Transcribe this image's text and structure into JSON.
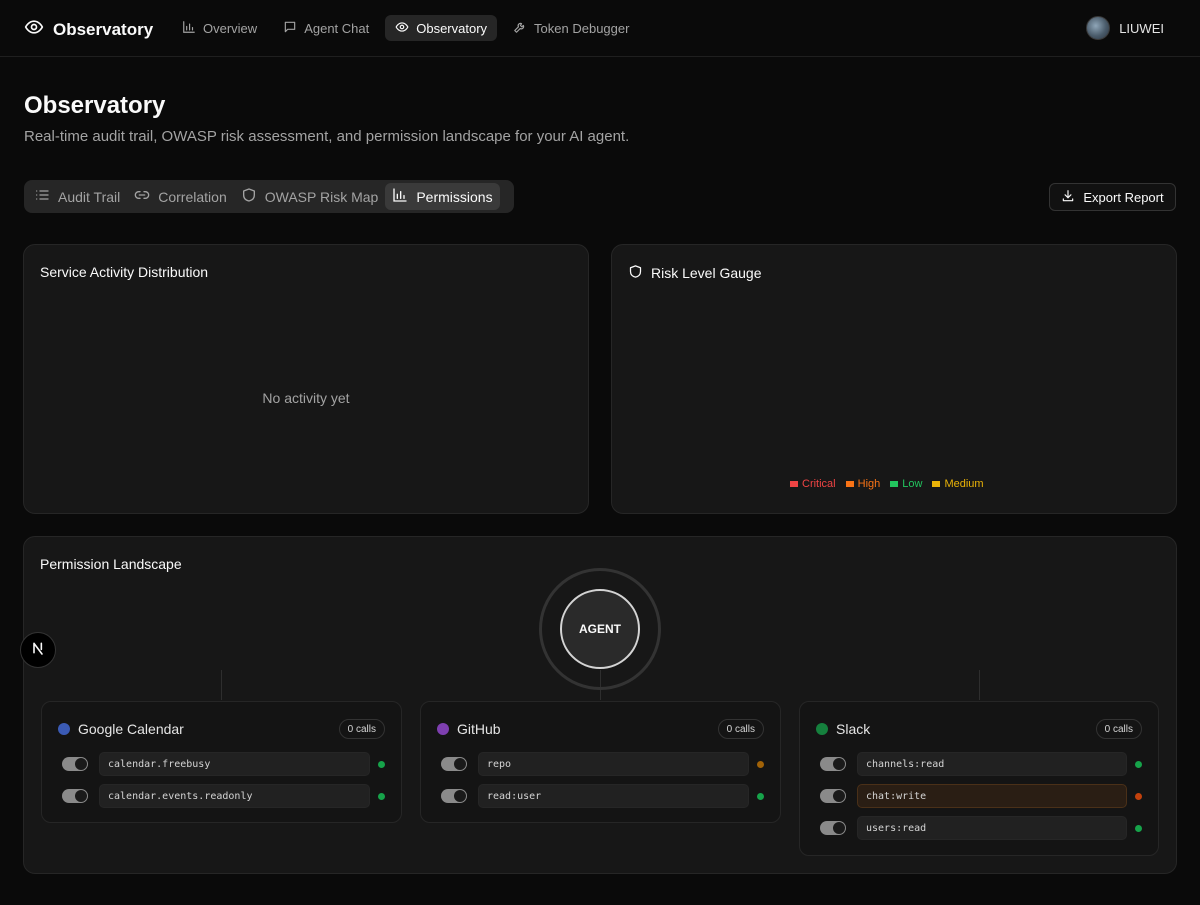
{
  "brand": {
    "title": "Observatory",
    "icon": "eye-icon"
  },
  "nav": {
    "items": [
      {
        "label": "Overview",
        "icon": "bar-chart-icon"
      },
      {
        "label": "Agent Chat",
        "icon": "chat-icon"
      },
      {
        "label": "Observatory",
        "icon": "eye-icon",
        "active": true
      },
      {
        "label": "Token Debugger",
        "icon": "wrench-icon"
      }
    ]
  },
  "user": {
    "name": "LIUWEI"
  },
  "header": {
    "title": "Observatory",
    "subtitle": "Real-time audit trail, OWASP risk assessment, and permission landscape for your AI agent."
  },
  "tabs": [
    {
      "label": "Audit Trail",
      "icon": "list-icon"
    },
    {
      "label": "Correlation",
      "icon": "link-icon"
    },
    {
      "label": "OWASP Risk Map",
      "icon": "shield-icon"
    },
    {
      "label": "Permissions",
      "icon": "bar-chart-icon",
      "active": true
    }
  ],
  "export": {
    "label": "Export Report"
  },
  "activity": {
    "title": "Service Activity Distribution",
    "empty": "No activity yet"
  },
  "gauge": {
    "title": "Risk Level Gauge",
    "legend": [
      {
        "label": "Critical",
        "color": "#ef4444"
      },
      {
        "label": "High",
        "color": "#f97316"
      },
      {
        "label": "Low",
        "color": "#22c55e"
      },
      {
        "label": "Medium",
        "color": "#eab308"
      }
    ]
  },
  "landscape": {
    "title": "Permission Landscape",
    "agent_label": "AGENT",
    "services": [
      {
        "name": "Google Calendar",
        "color": "#3b5bb5",
        "calls": "0 calls",
        "scopes": [
          {
            "name": "calendar.freebusy",
            "status_color": "#16a34a"
          },
          {
            "name": "calendar.events.readonly",
            "status_color": "#16a34a"
          }
        ]
      },
      {
        "name": "GitHub",
        "color": "#7e3fb0",
        "calls": "0 calls",
        "scopes": [
          {
            "name": "repo",
            "status_color": "#a16207"
          },
          {
            "name": "read:user",
            "status_color": "#16a34a"
          }
        ]
      },
      {
        "name": "Slack",
        "color": "#15803d",
        "calls": "0 calls",
        "scopes": [
          {
            "name": "channels:read",
            "status_color": "#16a34a"
          },
          {
            "name": "chat:write",
            "status_color": "#c2410c",
            "warn": true
          },
          {
            "name": "users:read",
            "status_color": "#16a34a"
          }
        ]
      }
    ]
  }
}
